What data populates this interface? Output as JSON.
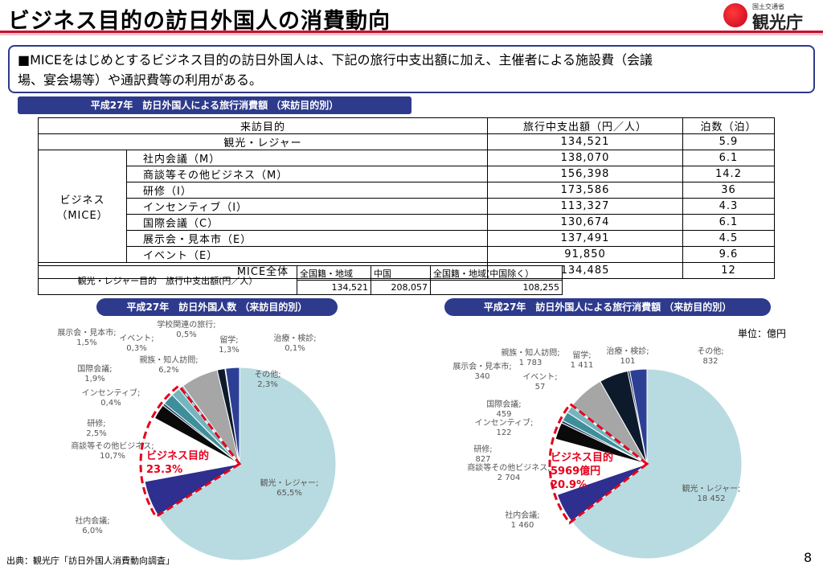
{
  "header": {
    "title": "ビジネス目的の訪日外国人の消費動向",
    "logo_small": "国土交通省",
    "logo_big": "観光庁"
  },
  "intro": {
    "line1": "■MICEをはじめとするビジネス目的の訪日外国人は、下記の旅行中支出額に加え、主催者による施設費（会議",
    "line2": "場、宴会場等）や通訳費等の利用がある。"
  },
  "table1": {
    "banner": "平成27年　訪日外国人による旅行消費額 （来訪目的別）",
    "headers": [
      "来訪目的",
      "旅行中支出額（円／人）",
      "泊数（泊）"
    ],
    "tourism": {
      "label": "観光・レジャー",
      "spend": "134,521",
      "nights": "5.9"
    },
    "group_label_1": "ビジネス",
    "group_label_2": "（MICE）",
    "rows": [
      {
        "label": "社内会議（M）",
        "spend": "138,070",
        "nights": "6.1"
      },
      {
        "label": "商談等その他ビジネス（M）",
        "spend": "156,398",
        "nights": "14.2"
      },
      {
        "label": "研修（I）",
        "spend": "173,586",
        "nights": "36"
      },
      {
        "label": "インセンティブ（I）",
        "spend": "113,327",
        "nights": "4.3"
      },
      {
        "label": "国際会議（C）",
        "spend": "130,674",
        "nights": "6.1"
      },
      {
        "label": "展示会・見本市（E）",
        "spend": "137,491",
        "nights": "4.5"
      },
      {
        "label": "イベント（E）",
        "spend": "91,850",
        "nights": "9.6"
      }
    ],
    "total": {
      "label": "MICE全体",
      "spend": "134,485",
      "nights": "12"
    }
  },
  "table2": {
    "row_label": "観光・レジャー目的　旅行中支出額(円／人）",
    "headers": [
      "全国籍・地域",
      "中国",
      "全国籍・地域(中国除く）"
    ],
    "values": [
      "134,521",
      "208,057",
      "108,255"
    ]
  },
  "chart_data": [
    {
      "type": "pie",
      "title": "平成27年　訪日外国人数 （来訪目的別）",
      "categories": [
        "観光・レジャー",
        "社内会議",
        "商談等その他ビジネス",
        "研修",
        "インセンティブ",
        "国際会議",
        "展示会・見本市",
        "イベント",
        "学校関連の旅行",
        "親族・知人訪問",
        "留学",
        "治療・検診",
        "その他"
      ],
      "values": [
        65.5,
        6.0,
        10.7,
        2.5,
        0.4,
        1.9,
        1.5,
        0.3,
        0.5,
        6.2,
        1.3,
        0.1,
        2.3
      ],
      "value_labels": [
        "観光・レジャー; 65,5%",
        "社内会議; 6,0%",
        "商談等その他ビジネス; 10,7%",
        "研修; 2,5%",
        "インセンティブ; 0,4%",
        "国際会議; 1,9%",
        "展示会・見本市; 1,5%",
        "イベント; 0,3%",
        "学校関連の旅行; 0,5%",
        "親族・知人訪問; 6,2%",
        "留学; 1,3%",
        "治療・検診; 0,1%",
        "その他; 2,3%"
      ],
      "callout": [
        "ビジネス目的",
        "23.3%"
      ]
    },
    {
      "type": "pie",
      "title": "平成27年　訪日外国人による旅行消費額 （来訪目的別）",
      "unit": "単位：億円",
      "categories": [
        "観光・レジャー",
        "社内会議",
        "商談等その他ビジネス",
        "研修",
        "インセンティブ",
        "国際会議",
        "展示会・見本市",
        "イベント",
        "親族・知人訪問",
        "留学",
        "治療・検診",
        "その他"
      ],
      "values": [
        18452,
        1460,
        2704,
        827,
        122,
        459,
        340,
        57,
        1783,
        1411,
        101,
        832
      ],
      "value_labels": [
        "観光・レジャー; 18 452",
        "社内会議; 1 460",
        "商談等その他ビジネス; 2 704",
        "研修; 827",
        "インセンティブ; 122",
        "国際会議; 459",
        "展示会・見本市; 340",
        "イベント; 57",
        "親族・知人訪問; 1 783",
        "留学; 1 411",
        "治療・検診; 101",
        "その他; 832"
      ],
      "callout": [
        "ビジネス目的",
        "5969億円",
        "20.9%"
      ]
    }
  ],
  "colors": {
    "tourism": "#b7dbe0",
    "meeting": "#2e2f8f",
    "business": "#ffffff",
    "training": "#0a0a0a",
    "incentive": "#1f3a63",
    "conference": "#3e8f9a",
    "exhibition": "#76b5bd",
    "event": "#2d6070",
    "school": "#8aa4ba",
    "family": "#a6a6a6",
    "study": "#0d1a2c",
    "medical": "#1b2a4e",
    "other": "#2d3f95",
    "highlight": "#e4001b",
    "navy": "#2e3a8c"
  },
  "footer": {
    "source": "出典：観光庁「訪日外国人消費動向調査」",
    "page": "8"
  }
}
